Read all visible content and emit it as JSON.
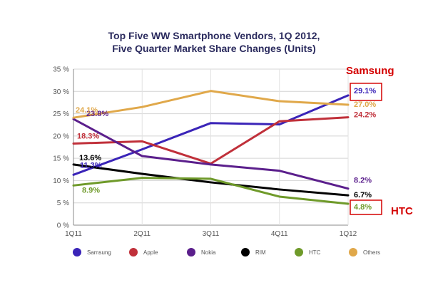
{
  "chart_data": {
    "type": "line",
    "title_line1": "Top Five WW Smartphone Vendors, 1Q 2012,",
    "title_line2": "Five Quarter Market Share Changes (Units)",
    "xlabel": "",
    "ylabel": "",
    "categories": [
      "1Q11",
      "2Q11",
      "3Q11",
      "4Q11",
      "1Q12"
    ],
    "ylim": [
      0,
      35
    ],
    "y_ticks": [
      {
        "value": 0,
        "label": "0 %"
      },
      {
        "value": 5,
        "label": "5 %"
      },
      {
        "value": 10,
        "label": "10 %"
      },
      {
        "value": 15,
        "label": "15 %"
      },
      {
        "value": 20,
        "label": "20 %"
      },
      {
        "value": 25,
        "label": "25 %"
      },
      {
        "value": 30,
        "label": "30 %"
      },
      {
        "value": 35,
        "label": "35 %"
      }
    ],
    "grid": true,
    "legend_position": "bottom",
    "series": [
      {
        "name": "Samsung",
        "color": "#3a24b8",
        "values": [
          11.3,
          17.0,
          22.9,
          22.6,
          29.1
        ],
        "start_label": "11.3%",
        "end_label": "29.1%"
      },
      {
        "name": "Apple",
        "color": "#c0303a",
        "values": [
          18.3,
          18.8,
          13.8,
          23.3,
          24.2
        ],
        "start_label": "18.3%",
        "end_label": "24.2%"
      },
      {
        "name": "Nokia",
        "color": "#5b1f8c",
        "values": [
          23.8,
          15.5,
          13.6,
          12.2,
          8.2
        ],
        "start_label": "23.8%",
        "end_label": "8.2%"
      },
      {
        "name": "RIM",
        "color": "#000000",
        "values": [
          13.6,
          11.5,
          9.6,
          8.0,
          6.7
        ],
        "start_label": "13.6%",
        "end_label": "6.7%"
      },
      {
        "name": "HTC",
        "color": "#6f9a2a",
        "values": [
          8.9,
          10.6,
          10.4,
          6.4,
          4.8
        ],
        "start_label": "8.9%",
        "end_label": "4.8%"
      },
      {
        "name": "Others",
        "color": "#e0a84a",
        "values": [
          24.1,
          26.5,
          30.1,
          27.8,
          27.0
        ],
        "start_label": "24.1%",
        "end_label": "27.0%"
      }
    ],
    "annotations": {
      "samsung_callout": "Samsung",
      "htc_callout": "HTC"
    }
  }
}
